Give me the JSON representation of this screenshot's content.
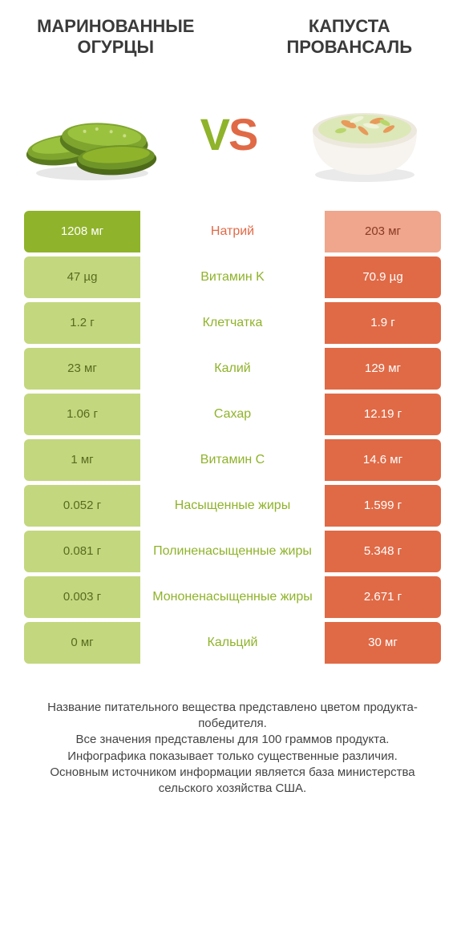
{
  "colors": {
    "left_dark": "#8fb32a",
    "left_light": "#c3d77e",
    "right_dark": "#e06a46",
    "right_light": "#efa68d",
    "left_text_on_dark": "#ffffff",
    "left_text_on_light": "#576b1f",
    "right_text_on_dark": "#ffffff",
    "right_text_on_light": "#8a3a22",
    "mid_text_left": "#e06a46",
    "mid_text_right": "#8fb32a"
  },
  "header": {
    "left_title": "МАРИНОВАННЫЕ ОГУРЦЫ",
    "right_title": "КАПУСТА ПРОВАНСАЛЬ",
    "vs_v": "V",
    "vs_s": "S"
  },
  "rows": [
    {
      "label": "Натрий",
      "left": "1208 мг",
      "right": "203 мг",
      "winner": "left"
    },
    {
      "label": "Витамин K",
      "left": "47 µg",
      "right": "70.9 µg",
      "winner": "right"
    },
    {
      "label": "Клетчатка",
      "left": "1.2 г",
      "right": "1.9 г",
      "winner": "right"
    },
    {
      "label": "Калий",
      "left": "23 мг",
      "right": "129 мг",
      "winner": "right"
    },
    {
      "label": "Сахар",
      "left": "1.06 г",
      "right": "12.19 г",
      "winner": "right"
    },
    {
      "label": "Витамин C",
      "left": "1 мг",
      "right": "14.6 мг",
      "winner": "right"
    },
    {
      "label": "Насыщенные жиры",
      "left": "0.052 г",
      "right": "1.599 г",
      "winner": "right"
    },
    {
      "label": "Полиненасыщенные жиры",
      "left": "0.081 г",
      "right": "5.348 г",
      "winner": "right"
    },
    {
      "label": "Мононенасыщенные жиры",
      "left": "0.003 г",
      "right": "2.671 г",
      "winner": "right"
    },
    {
      "label": "Кальций",
      "left": "0 мг",
      "right": "30 мг",
      "winner": "right"
    }
  ],
  "footer": {
    "line1": "Название питательного вещества представлено цветом продукта-победителя.",
    "line2": "Все значения представлены для 100 граммов продукта.",
    "line3": "Инфографика показывает только существенные различия.",
    "line4": "Основным источником информации является база министерства сельского хозяйства США."
  }
}
